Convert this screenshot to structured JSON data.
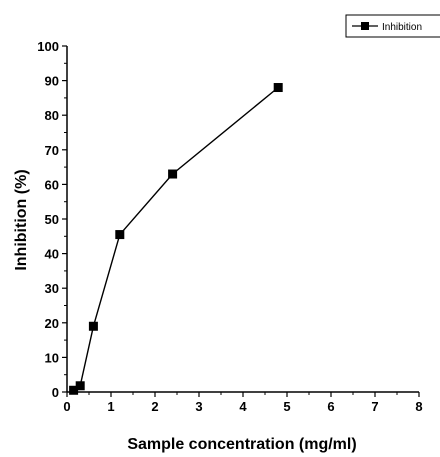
{
  "chart_data": {
    "type": "line",
    "xlabel": "Sample concentration (mg/ml)",
    "ylabel": "Inhibition (%)",
    "xlim": [
      0,
      8
    ],
    "ylim": [
      0,
      100
    ],
    "x_ticks": [
      "0",
      "1",
      "2",
      "3",
      "4",
      "5",
      "6",
      "7",
      "8"
    ],
    "y_ticks": [
      "0",
      "10",
      "20",
      "30",
      "40",
      "50",
      "60",
      "70",
      "80",
      "90",
      "100"
    ],
    "grid": false,
    "legend_position": "top-right",
    "marker": "square",
    "line_color": "#000000",
    "series": [
      {
        "name": "Inhibition",
        "x": [
          0.15,
          0.3,
          0.6,
          1.2,
          2.4,
          4.8
        ],
        "y": [
          0.5,
          1.8,
          19,
          45.5,
          63,
          88
        ]
      }
    ]
  }
}
